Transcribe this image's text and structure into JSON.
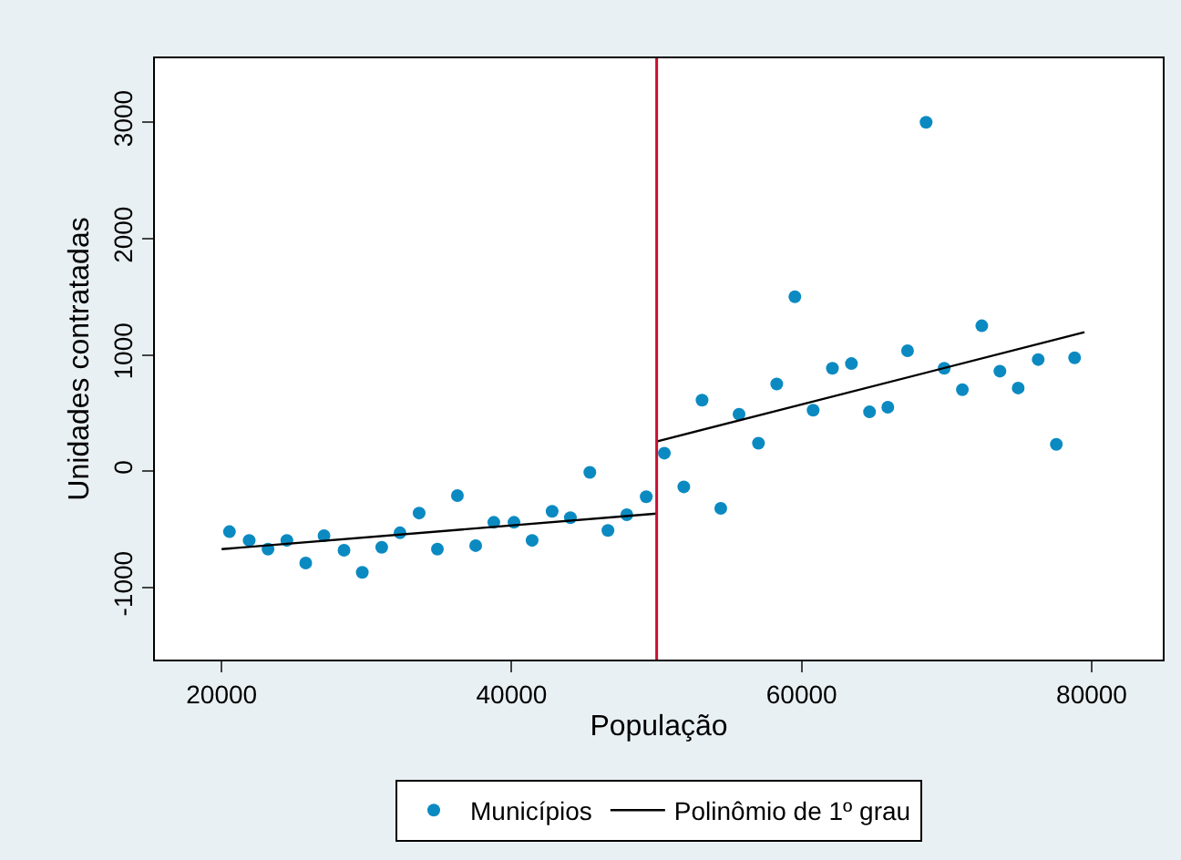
{
  "chart_data": {
    "type": "scatter",
    "xlabel": "População",
    "ylabel": "Unidades contratadas",
    "xlim": [
      15400,
      84900
    ],
    "ylim": [
      -1620,
      3550
    ],
    "xticks": [
      20000,
      40000,
      60000,
      80000
    ],
    "yticks": [
      -1000,
      0,
      1000,
      2000,
      3000
    ],
    "grid": false,
    "legend": "bottom",
    "series": [
      {
        "name": "Municípios",
        "color": "#0b8ac2",
        "marker": "circle",
        "x": [
          20540,
          21900,
          23200,
          24500,
          25800,
          27060,
          28440,
          29700,
          31040,
          32300,
          33620,
          34880,
          36260,
          37520,
          38770,
          40160,
          41410,
          42790,
          44050,
          45390,
          46640,
          47940,
          49280,
          50530,
          51870,
          53130,
          54420,
          55680,
          57020,
          58280,
          59530,
          60790,
          62120,
          63430,
          64680,
          65940,
          67300,
          68580,
          69830,
          71080,
          72420,
          73670,
          74930,
          76310,
          77560,
          78820
        ],
        "values": [
          -520,
          -595,
          -670,
          -595,
          -790,
          -555,
          -680,
          -870,
          -655,
          -530,
          -360,
          -670,
          -210,
          -640,
          -440,
          -440,
          -595,
          -345,
          -400,
          -10,
          -510,
          -375,
          -220,
          155,
          -135,
          610,
          -320,
          490,
          240,
          750,
          1500,
          525,
          885,
          925,
          510,
          550,
          1035,
          3000,
          885,
          700,
          1250,
          860,
          715,
          960,
          230,
          975
        ]
      },
      {
        "type": "line",
        "name": "Polinômio de 1º grau",
        "color": "#000000",
        "line_style": "solid",
        "marker": "none",
        "x": [
          20000,
          50000
        ],
        "values": [
          -670,
          -365
        ]
      },
      {
        "type": "line",
        "color": "#000000",
        "line_style": "solid",
        "marker": "none",
        "x": [
          50000,
          79500
        ],
        "values": [
          255,
          1195
        ]
      }
    ],
    "ref_lines": [
      {
        "axis": "x",
        "value": 50000,
        "color": "#c8102e"
      }
    ]
  }
}
